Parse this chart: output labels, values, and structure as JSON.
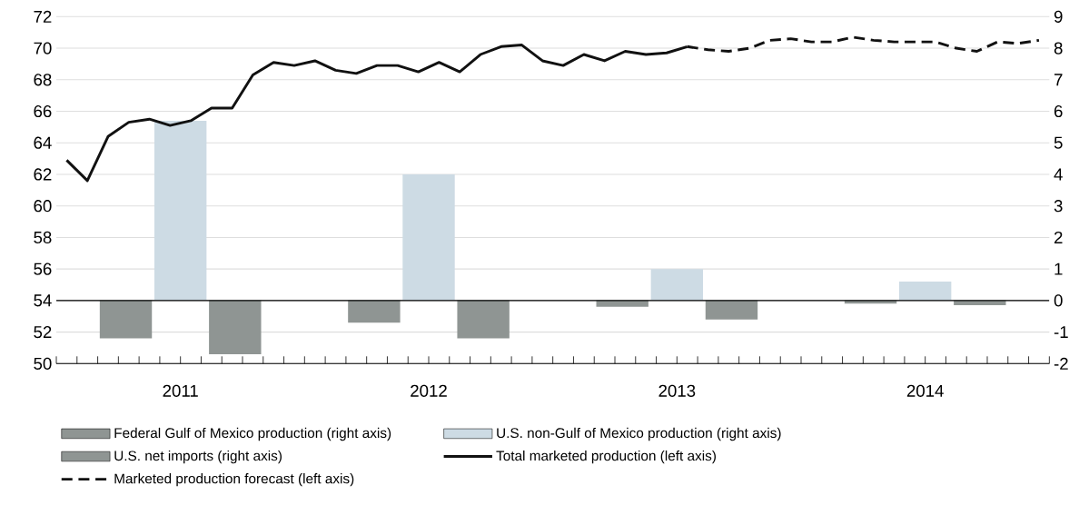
{
  "chart_data": {
    "type": "bar",
    "xlim": [
      2011,
      2015
    ],
    "xticks": [
      {
        "value": 2011,
        "label": null
      },
      {
        "value": 2011.0833,
        "label": null
      },
      {
        "value": 2011.1667,
        "label": null
      },
      {
        "value": 2011.25,
        "label": null
      },
      {
        "value": 2011.3333,
        "label": null
      },
      {
        "value": 2011.4167,
        "label": null
      },
      {
        "value": 2011.5,
        "label": "2011"
      },
      {
        "value": 2011.5833,
        "label": null
      },
      {
        "value": 2011.6667,
        "label": null
      },
      {
        "value": 2011.75,
        "label": null
      },
      {
        "value": 2011.8333,
        "label": null
      },
      {
        "value": 2011.9167,
        "label": null
      },
      {
        "value": 2012,
        "label": null
      },
      {
        "value": 2012.0833,
        "label": null
      },
      {
        "value": 2012.1667,
        "label": null
      },
      {
        "value": 2012.25,
        "label": null
      },
      {
        "value": 2012.3333,
        "label": null
      },
      {
        "value": 2012.4167,
        "label": null
      },
      {
        "value": 2012.5,
        "label": "2012"
      },
      {
        "value": 2012.5833,
        "label": null
      },
      {
        "value": 2012.6667,
        "label": null
      },
      {
        "value": 2012.75,
        "label": null
      },
      {
        "value": 2012.8333,
        "label": null
      },
      {
        "value": 2012.9167,
        "label": null
      },
      {
        "value": 2013,
        "label": null
      },
      {
        "value": 2013.0833,
        "label": null
      },
      {
        "value": 2013.1667,
        "label": null
      },
      {
        "value": 2013.25,
        "label": null
      },
      {
        "value": 2013.3333,
        "label": null
      },
      {
        "value": 2013.4167,
        "label": null
      },
      {
        "value": 2013.5,
        "label": "2013"
      },
      {
        "value": 2013.5833,
        "label": null
      },
      {
        "value": 2013.6667,
        "label": null
      },
      {
        "value": 2013.75,
        "label": null
      },
      {
        "value": 2013.8333,
        "label": null
      },
      {
        "value": 2013.9167,
        "label": null
      },
      {
        "value": 2014,
        "label": null
      },
      {
        "value": 2014.0833,
        "label": null
      },
      {
        "value": 2014.1667,
        "label": null
      },
      {
        "value": 2014.25,
        "label": null
      },
      {
        "value": 2014.3333,
        "label": null
      },
      {
        "value": 2014.4167,
        "label": null
      },
      {
        "value": 2014.5,
        "label": "2014"
      },
      {
        "value": 2014.5833,
        "label": null
      },
      {
        "value": 2014.6667,
        "label": null
      },
      {
        "value": 2014.75,
        "label": null
      },
      {
        "value": 2014.8333,
        "label": null
      },
      {
        "value": 2014.9167,
        "label": null
      },
      {
        "value": 2015,
        "label": null
      }
    ],
    "ylim": [
      50,
      72
    ],
    "yticks": [
      50,
      52,
      54,
      56,
      58,
      60,
      62,
      64,
      66,
      68,
      70,
      72
    ],
    "y2lim": [
      -2,
      9
    ],
    "y2ticks": [
      -2,
      -1,
      0,
      1,
      2,
      3,
      4,
      5,
      6,
      7,
      8,
      9
    ],
    "grid": "y",
    "legend": "bottom",
    "ref_lines": [
      {
        "axis": "y2",
        "value": 0,
        "color": "#000000"
      }
    ],
    "series": [
      {
        "name": "Federal Gulf of Mexico production (right axis)",
        "axis": "y2",
        "color": "#8f9593",
        "x": [
          2011.5,
          2012.5,
          2013.5,
          2014.5
        ],
        "values": [
          -1.2,
          -0.7,
          -0.2,
          -0.1
        ]
      },
      {
        "name": "U.S. non-Gulf of Mexico production (right axis)",
        "axis": "y2",
        "color": "#cddbe4",
        "x": [
          2011.5,
          2012.5,
          2013.5,
          2014.5
        ],
        "values": [
          5.7,
          4.0,
          1.0,
          0.6
        ]
      },
      {
        "name": "U.S. net imports (right axis)",
        "axis": "y2",
        "color": "#8f9593",
        "x": [
          2011.5,
          2012.5,
          2013.5,
          2014.5
        ],
        "values": [
          -1.7,
          -1.2,
          -0.6,
          -0.15
        ]
      },
      {
        "name": "Total marketed production (left axis)",
        "type": "line",
        "line_style": "solid",
        "color": "#111111",
        "x": [
          2011.0417,
          2011.125,
          2011.2083,
          2011.2917,
          2011.375,
          2011.4583,
          2011.5417,
          2011.625,
          2011.7083,
          2011.7917,
          2011.875,
          2011.9583,
          2012.0417,
          2012.125,
          2012.2083,
          2012.2917,
          2012.375,
          2012.4583,
          2012.5417,
          2012.625,
          2012.7083,
          2012.7917,
          2012.875,
          2012.9583,
          2013.0417,
          2013.125,
          2013.2083,
          2013.2917,
          2013.375,
          2013.4583,
          2013.5417
        ],
        "values": [
          62.9,
          61.6,
          64.4,
          65.3,
          65.5,
          65.1,
          65.4,
          66.2,
          66.2,
          68.3,
          69.1,
          68.9,
          69.2,
          68.6,
          68.4,
          68.9,
          68.9,
          68.5,
          69.1,
          68.5,
          69.6,
          70.1,
          70.2,
          69.2,
          68.9,
          69.6,
          69.2,
          69.8,
          69.6,
          69.7,
          70.1
        ]
      },
      {
        "name": "Marketed production forecast (left axis)",
        "type": "line",
        "line_style": "dashed",
        "color": "#111111",
        "x": [
          2013.5417,
          2013.625,
          2013.7083,
          2013.7917,
          2013.875,
          2013.9583,
          2014.0417,
          2014.125,
          2014.2083,
          2014.2917,
          2014.375,
          2014.4583,
          2014.5417,
          2014.625,
          2014.7083,
          2014.7917,
          2014.875,
          2014.9583
        ],
        "values": [
          70.1,
          69.9,
          69.8,
          70.0,
          70.5,
          70.6,
          70.4,
          70.4,
          70.7,
          70.5,
          70.4,
          70.4,
          70.4,
          70.0,
          69.8,
          70.4,
          70.3,
          70.5
        ]
      }
    ]
  }
}
